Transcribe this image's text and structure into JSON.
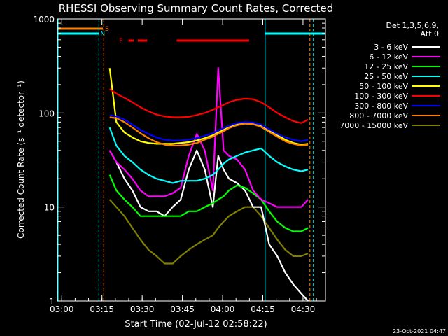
{
  "chart_data": {
    "type": "line",
    "title": "RHESSI Observing Summary Count Rates, Corrected",
    "xlabel": "Start Time (02-Jul-12 02:58:22)",
    "ylabel": "Corrected Count Rate (s⁻¹ detector⁻¹)",
    "yscale": "log",
    "ylim": [
      1,
      1000
    ],
    "xlim_minutes": [
      0,
      100
    ],
    "x_ticks": [
      "03:00",
      "03:15",
      "03:30",
      "03:45",
      "04:00",
      "04:15",
      "04:30"
    ],
    "x_tick_minutes": [
      1.633,
      16.633,
      31.633,
      46.633,
      61.633,
      76.633,
      91.633
    ],
    "y_ticks": [
      "1",
      "10",
      "100",
      "1000"
    ],
    "y_tick_values": [
      1,
      10,
      100,
      1000
    ],
    "legend_title": [
      "Det 1,3,5,6,9,",
      "Att 0"
    ],
    "legend_position": "right",
    "footer": "23-Oct-2021 04:47",
    "flags": {
      "S_label": "S",
      "N_label": "N",
      "F_label": "F",
      "saa_color": "#ff8000",
      "night_color": "#00ffff",
      "flare_color": "#ff0000",
      "saa_end_min": 17.0,
      "night_segments_min": [
        [
          0,
          15.5
        ],
        [
          77.5,
          100
        ]
      ],
      "flare_segments_min": [
        [
          26.5,
          28.5
        ],
        [
          30,
          33.5
        ],
        [
          44.5,
          71.5
        ]
      ],
      "night_dash_lines_min": [
        15.5,
        95.5
      ],
      "saa_dash_lines_min": [
        17.3,
        94.2
      ],
      "night_solid_lines_min": [
        77.5
      ]
    },
    "x_minutes": [
      19.5,
      22,
      25,
      28,
      31,
      34,
      37,
      40,
      43,
      46,
      49,
      52,
      55,
      58,
      60,
      62,
      64,
      67,
      70,
      73,
      76,
      79,
      82,
      85,
      88,
      91,
      93.5
    ],
    "series": [
      {
        "name": "3 - 6 keV",
        "color": "#ffffff",
        "values": [
          40,
          30,
          20,
          15,
          10,
          9,
          9,
          8,
          10,
          12,
          25,
          40,
          25,
          10,
          35,
          25,
          20,
          18,
          15,
          10,
          10,
          4,
          3,
          2,
          1.5,
          1.2,
          1
        ]
      },
      {
        "name": "6 - 12 keV",
        "color": "#ff00ff",
        "values": [
          40,
          30,
          25,
          20,
          15,
          13,
          13,
          13,
          14,
          16,
          35,
          60,
          40,
          15,
          300,
          40,
          35,
          32,
          25,
          15,
          12,
          11,
          10,
          10,
          10,
          10,
          12
        ]
      },
      {
        "name": "12 - 25 keV",
        "color": "#00ff00",
        "values": [
          22,
          15,
          12,
          10,
          8,
          8,
          8,
          8,
          8,
          8,
          9,
          9,
          10,
          11,
          12,
          13,
          15,
          17,
          16,
          14,
          12,
          9,
          7,
          6,
          5.5,
          5.5,
          6
        ]
      },
      {
        "name": "25 - 50 keV",
        "color": "#00ffff",
        "values": [
          70,
          45,
          35,
          30,
          25,
          22,
          20,
          19,
          18,
          19,
          19,
          19,
          20,
          22,
          25,
          29,
          32,
          35,
          38,
          40,
          42,
          35,
          30,
          27,
          25,
          24,
          25
        ]
      },
      {
        "name": "50 - 100 keV",
        "color": "#ffff00",
        "values": [
          300,
          80,
          62,
          55,
          50,
          48,
          47,
          47,
          47,
          48,
          49,
          51,
          54,
          58,
          62,
          66,
          71,
          76,
          79,
          78,
          73,
          65,
          58,
          52,
          48,
          46,
          47
        ]
      },
      {
        "name": "100 - 300 keV",
        "color": "#ff0000",
        "values": [
          180,
          160,
          145,
          130,
          115,
          104,
          96,
          92,
          90,
          90,
          91,
          95,
          100,
          108,
          115,
          122,
          130,
          138,
          142,
          140,
          130,
          115,
          100,
          90,
          82,
          78,
          85
        ]
      },
      {
        "name": "300 - 800 keV",
        "color": "#0000ff",
        "values": [
          95,
          92,
          85,
          75,
          66,
          60,
          55,
          52,
          51,
          51,
          52,
          54,
          57,
          61,
          65,
          69,
          73,
          78,
          80,
          79,
          75,
          67,
          60,
          55,
          52,
          50,
          52
        ]
      },
      {
        "name": "800 - 7000 keV",
        "color": "#ff8000",
        "values": [
          90,
          88,
          80,
          70,
          61,
          54,
          49,
          46,
          45,
          45,
          46,
          48,
          52,
          56,
          60,
          64,
          69,
          74,
          77,
          76,
          71,
          63,
          56,
          50,
          47,
          45,
          46
        ]
      },
      {
        "name": "7000 - 15000 keV",
        "color": "#808000",
        "values": [
          12,
          10,
          8,
          6,
          4.5,
          3.5,
          3,
          2.5,
          2.5,
          3,
          3.5,
          4,
          4.5,
          5,
          6,
          7,
          8,
          9,
          10,
          10,
          8,
          6,
          4.5,
          3.5,
          3,
          3,
          3.2
        ]
      }
    ]
  }
}
